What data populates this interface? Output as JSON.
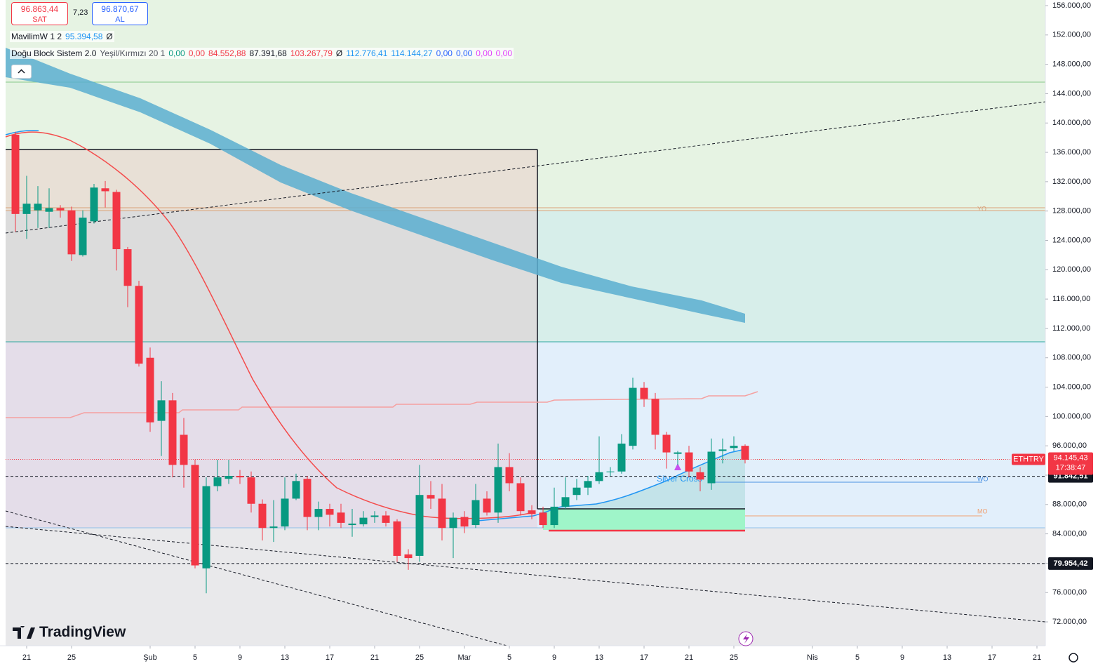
{
  "toolbar": {
    "sell_price": "96.863,44",
    "sell_label": "SAT",
    "spread": "7,23",
    "buy_price": "96.870,67",
    "buy_label": "AL"
  },
  "indicators": [
    {
      "name": "MavilimW 1 2",
      "values": [
        {
          "text": "95.394,58",
          "color": "#2196f3"
        },
        {
          "text": "Ø",
          "color": "#131722"
        }
      ]
    },
    {
      "name": "Doğu Block Sistem 2.0",
      "params": "Yeşil/Kırmızı 20 1",
      "values": [
        {
          "text": "0,00",
          "color": "#089981"
        },
        {
          "text": "0,00",
          "color": "#f23645"
        },
        {
          "text": "84.552,88",
          "color": "#f23645"
        },
        {
          "text": "87.391,68",
          "color": "#131722"
        },
        {
          "text": "103.267,79",
          "color": "#f23645"
        },
        {
          "text": "Ø",
          "color": "#131722"
        },
        {
          "text": "112.776,41",
          "color": "#2196f3"
        },
        {
          "text": "114.144,27",
          "color": "#2196f3"
        },
        {
          "text": "0,00",
          "color": "#2962ff"
        },
        {
          "text": "0,00",
          "color": "#2962ff"
        },
        {
          "text": "0,00",
          "color": "#e040fb"
        },
        {
          "text": "0,00",
          "color": "#e040fb"
        }
      ]
    }
  ],
  "watermark": "TradingView",
  "annotations": {
    "signal": "Silver Cross",
    "yearly_open": "YO",
    "weekly_open": "WO",
    "monthly_open": "MO"
  },
  "chart_data": {
    "type": "candlestick",
    "symbol": "ETHTRY",
    "up_color": "#089981",
    "down_color": "#f23645",
    "grid": false,
    "x": [
      -1,
      0,
      1,
      2,
      3,
      4,
      5,
      6,
      7,
      8,
      9,
      10,
      11,
      12,
      13,
      14,
      15,
      16,
      17,
      18,
      19,
      20,
      21,
      22,
      23,
      24,
      25,
      26,
      27,
      28,
      29,
      30,
      31,
      32,
      33,
      34,
      35,
      36,
      37,
      38,
      39,
      40,
      41,
      42,
      43,
      44,
      45,
      46,
      47,
      48,
      49,
      50,
      51,
      52,
      53,
      54,
      55,
      56,
      57,
      58,
      59,
      60,
      61,
      62,
      63,
      64
    ],
    "open": [
      138400,
      127600,
      128100,
      127900,
      128400,
      128100,
      122000,
      126600,
      131100,
      130600,
      122800,
      117800,
      108000,
      99400,
      102200,
      97500,
      93400,
      79300,
      90500,
      91500,
      91900,
      91700,
      88100,
      84800,
      85000,
      88800,
      91500,
      86300,
      87400,
      86900,
      85200,
      85300,
      86300,
      86500,
      85700,
      81200,
      81000,
      89300,
      88800,
      84800,
      86300,
      85200,
      88800,
      86900,
      93100,
      90900,
      87200,
      86900,
      85200,
      87700,
      89300,
      90300,
      91200,
      92400,
      92500,
      96000,
      103900,
      102400,
      97500,
      94900,
      95100,
      92400,
      90900,
      95300,
      95700,
      96000
    ],
    "high": [
      138800,
      132800,
      131400,
      131100,
      128800,
      128600,
      128100,
      131700,
      132100,
      130900,
      123100,
      118500,
      109400,
      104800,
      103200,
      99800,
      94100,
      91700,
      94100,
      94100,
      92700,
      92500,
      88700,
      88600,
      91700,
      92200,
      91900,
      88400,
      88100,
      88100,
      87400,
      87100,
      87100,
      87100,
      86000,
      81900,
      93400,
      91200,
      90800,
      86900,
      87100,
      90800,
      89800,
      96300,
      95000,
      91700,
      87900,
      87700,
      90300,
      91700,
      91500,
      91900,
      97300,
      93100,
      97600,
      105300,
      104700,
      103200,
      97900,
      95300,
      96000,
      93100,
      97000,
      97000,
      97300,
      96200
    ],
    "low": [
      125200,
      124200,
      125700,
      125700,
      127100,
      121200,
      121800,
      126300,
      128500,
      119900,
      114900,
      106800,
      97900,
      94600,
      91700,
      90300,
      79300,
      75900,
      89800,
      90800,
      90800,
      86900,
      83100,
      82900,
      84500,
      88600,
      84500,
      84500,
      85000,
      84800,
      83600,
      85000,
      85500,
      85000,
      80200,
      79100,
      80200,
      87400,
      83100,
      80700,
      84100,
      84800,
      86500,
      85500,
      89800,
      86500,
      86000,
      84800,
      84800,
      87400,
      88600,
      89300,
      90800,
      91900,
      92200,
      95500,
      101300,
      95500,
      92900,
      93400,
      91700,
      89800,
      90000,
      93600,
      95300,
      93600
    ],
    "close": [
      127600,
      129000,
      129000,
      128400,
      128100,
      122100,
      127100,
      131200,
      130700,
      122800,
      117800,
      107200,
      99200,
      102200,
      93400,
      93400,
      79700,
      90500,
      91700,
      91900,
      91700,
      88100,
      84800,
      85000,
      88800,
      91200,
      86300,
      87400,
      86600,
      85500,
      85400,
      86200,
      86500,
      85500,
      81000,
      80700,
      89300,
      88800,
      84800,
      86200,
      85000,
      88600,
      86900,
      93100,
      90900,
      87100,
      86700,
      85200,
      87700,
      89000,
      90300,
      91200,
      92400,
      92500,
      96300,
      103900,
      102400,
      97500,
      95100,
      95100,
      92500,
      91400,
      95200,
      95500,
      96000,
      94100
    ],
    "xlim": [
      -1.875,
      90.75
    ],
    "xticks": [
      {
        "value": 0,
        "label": "21"
      },
      {
        "value": 4,
        "label": "25"
      },
      {
        "value": 11,
        "label": "Şub"
      },
      {
        "value": 15,
        "label": "5"
      },
      {
        "value": 19,
        "label": "9"
      },
      {
        "value": 23,
        "label": "13"
      },
      {
        "value": 27,
        "label": "17"
      },
      {
        "value": 31,
        "label": "21"
      },
      {
        "value": 35,
        "label": "25"
      },
      {
        "value": 39,
        "label": "Mar"
      },
      {
        "value": 43,
        "label": "5"
      },
      {
        "value": 47,
        "label": "9"
      },
      {
        "value": 51,
        "label": "13"
      },
      {
        "value": 55,
        "label": "17"
      },
      {
        "value": 59,
        "label": "21"
      },
      {
        "value": 63,
        "label": "25"
      },
      {
        "value": 70,
        "label": "Nis"
      },
      {
        "value": 74,
        "label": "5"
      },
      {
        "value": 78,
        "label": "9"
      },
      {
        "value": 82,
        "label": "13"
      },
      {
        "value": 86,
        "label": "17"
      },
      {
        "value": 90,
        "label": "21"
      }
    ],
    "ylim": [
      68750,
      156765
    ],
    "yticks": [
      {
        "value": 72000,
        "label": "72.000,00"
      },
      {
        "value": 76000,
        "label": "76.000,00"
      },
      {
        "value": 80000,
        "label": "80.000,00"
      },
      {
        "value": 84000,
        "label": "84.000,00"
      },
      {
        "value": 88000,
        "label": "88.000,00"
      },
      {
        "value": 92000,
        "label": "92.000,00"
      },
      {
        "value": 96000,
        "label": "96.000,00"
      },
      {
        "value": 100000,
        "label": "100.000,00"
      },
      {
        "value": 104000,
        "label": "104.000,00"
      },
      {
        "value": 108000,
        "label": "108.000,00"
      },
      {
        "value": 112000,
        "label": "112.000,00"
      },
      {
        "value": 116000,
        "label": "116.000,00"
      },
      {
        "value": 120000,
        "label": "120.000,00"
      },
      {
        "value": 124000,
        "label": "124.000,00"
      },
      {
        "value": 128000,
        "label": "128.000,00"
      },
      {
        "value": 132000,
        "label": "132.000,00"
      },
      {
        "value": 136000,
        "label": "136.000,00"
      },
      {
        "value": 140000,
        "label": "140.000,00"
      },
      {
        "value": 144000,
        "label": "144.000,00"
      },
      {
        "value": 148000,
        "label": "148.000,00"
      },
      {
        "value": 152000,
        "label": "152.000,00"
      },
      {
        "value": 156000,
        "label": "156.000,00"
      }
    ],
    "last_price": {
      "value": 94145.43,
      "label": "94.145,43",
      "countdown": "17:38:47"
    },
    "levels": [
      {
        "value": 91842.51,
        "label": "91.842,51"
      },
      {
        "value": 79954.42,
        "label": "79.954,42"
      }
    ]
  }
}
